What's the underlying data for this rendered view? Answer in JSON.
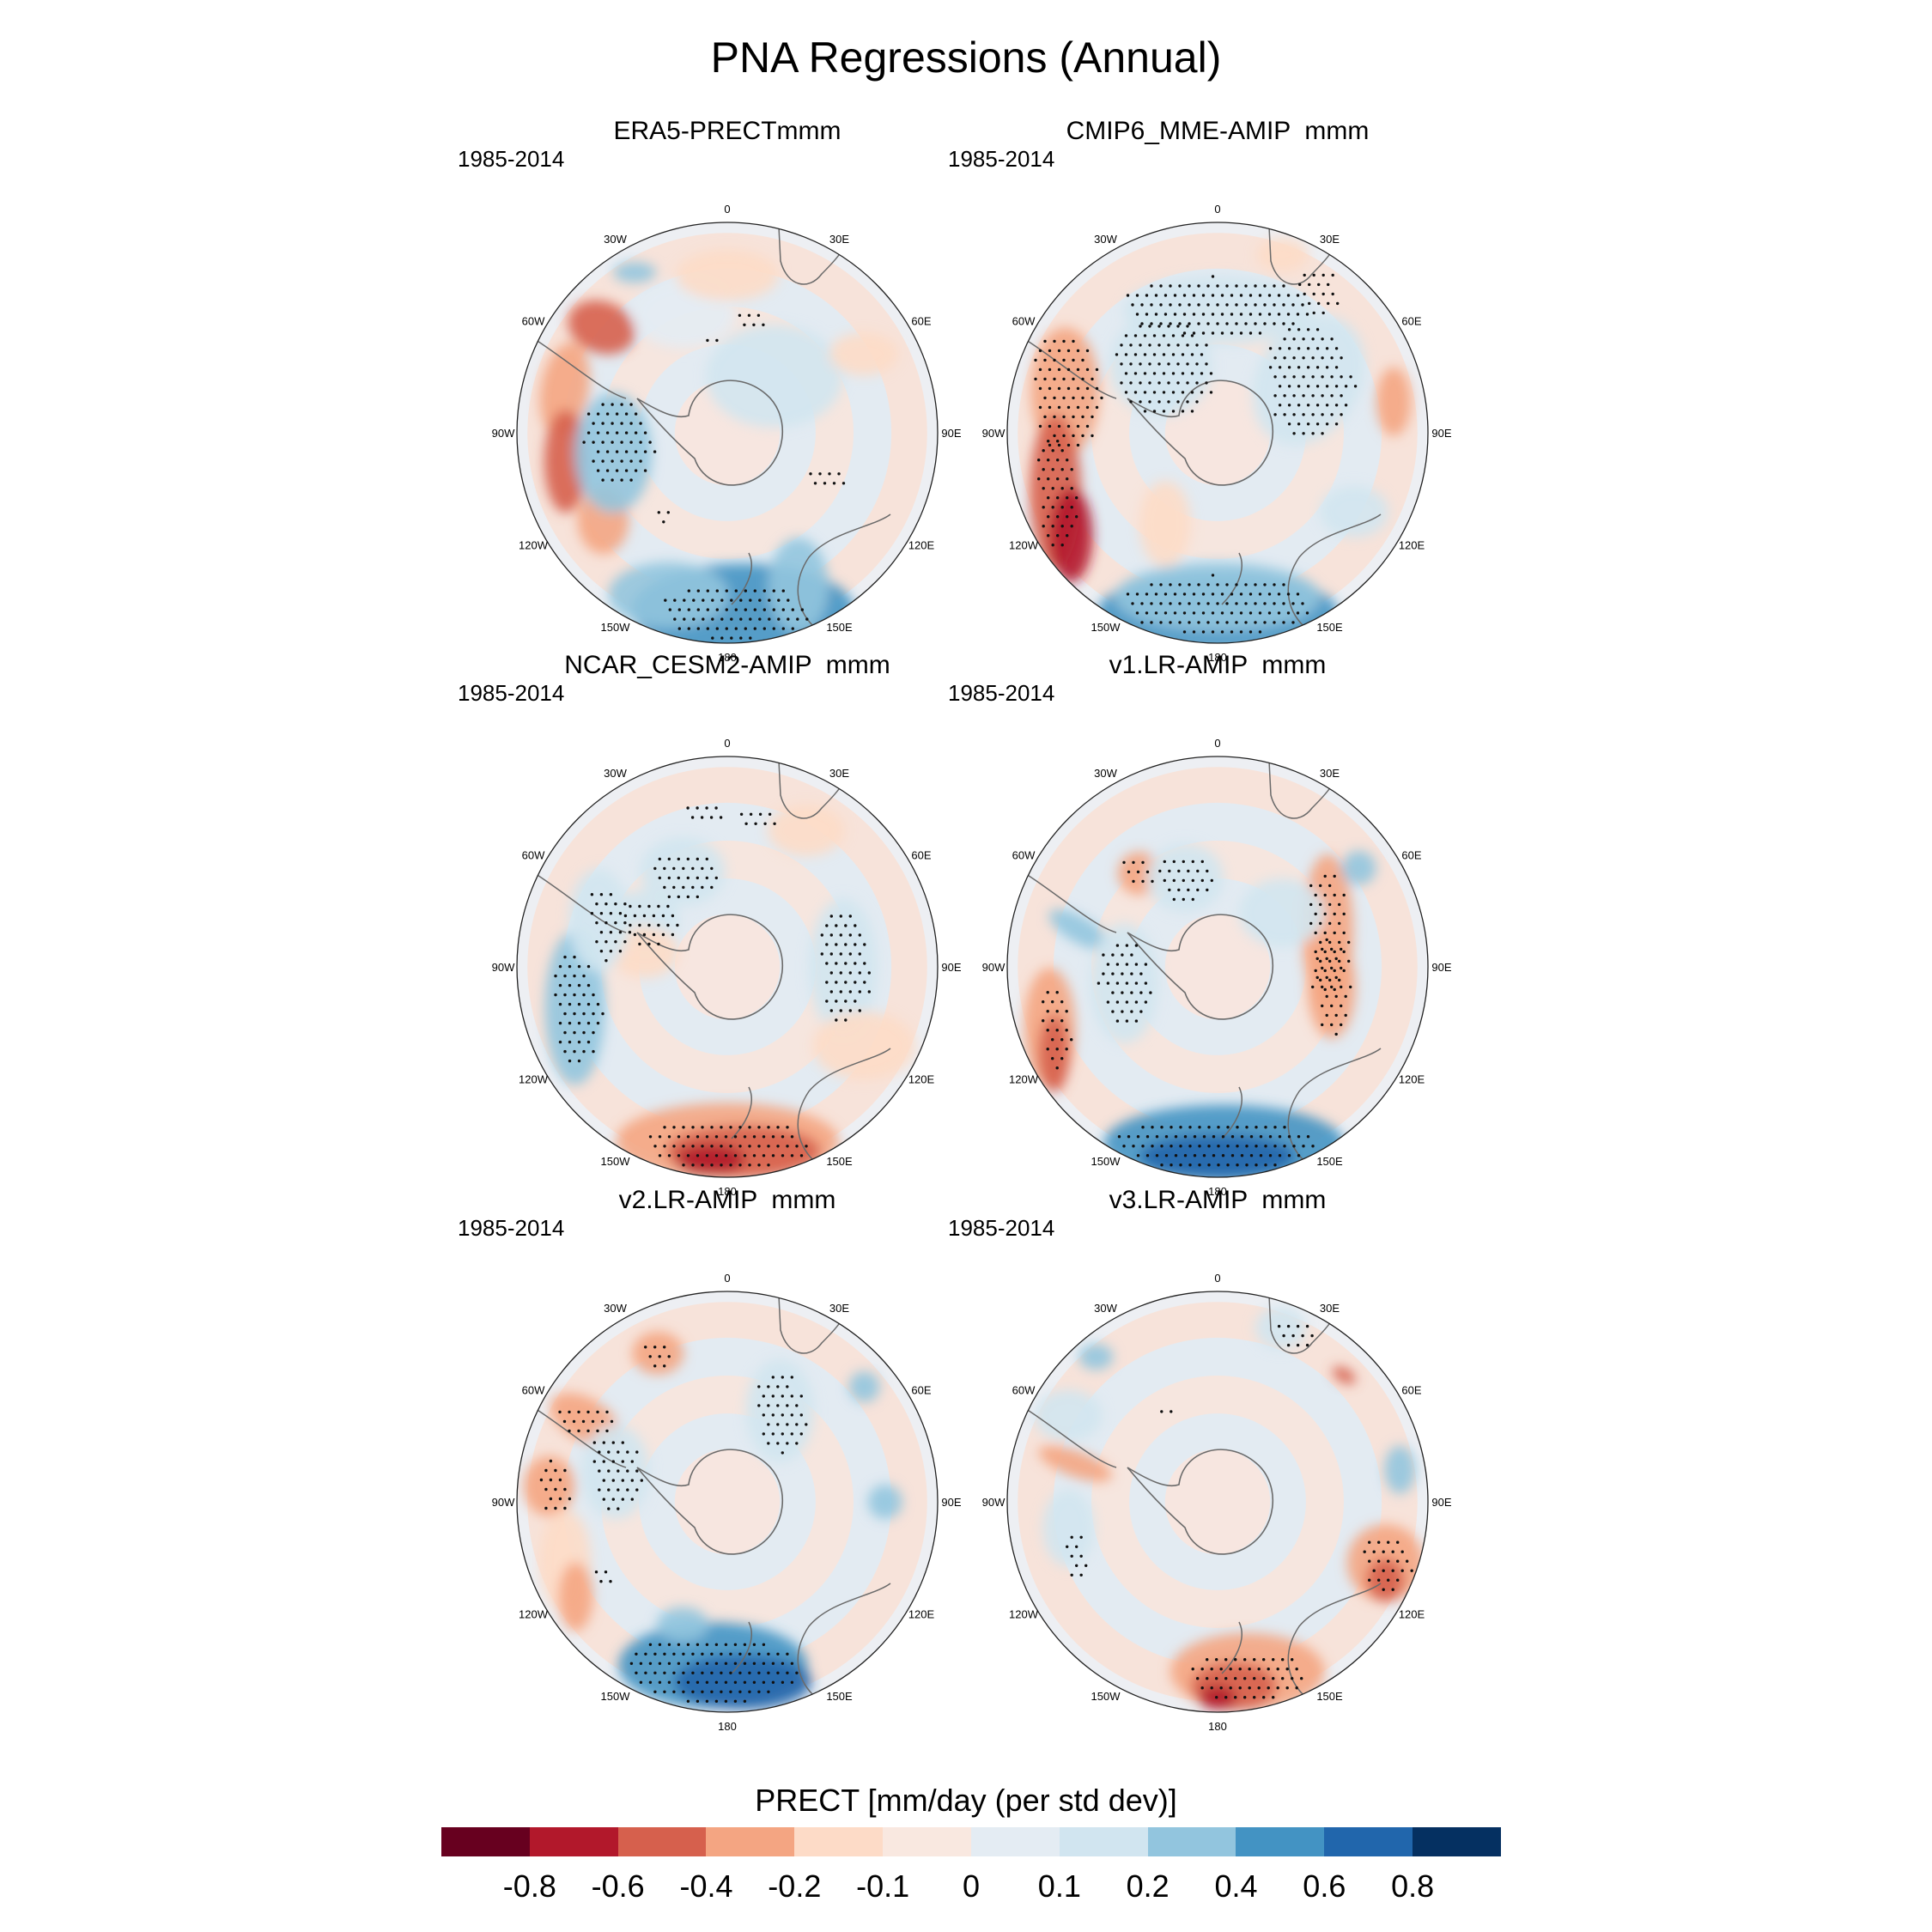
{
  "title": "PNA Regressions (Annual)",
  "panels": [
    {
      "title": "ERA5-PRECTmmm",
      "period": "1985-2014",
      "pattern": "era5"
    },
    {
      "title": "CMIP6_MME-AMIP  mmm",
      "period": "1985-2014",
      "pattern": "cmip6"
    },
    {
      "title": "NCAR_CESM2-AMIP  mmm",
      "period": "1985-2014",
      "pattern": "cesm2"
    },
    {
      "title": "v1.LR-AMIP  mmm",
      "period": "1985-2014",
      "pattern": "v1"
    },
    {
      "title": "v2.LR-AMIP  mmm",
      "period": "1985-2014",
      "pattern": "v2"
    },
    {
      "title": "v3.LR-AMIP  mmm",
      "period": "1985-2014",
      "pattern": "v3"
    }
  ],
  "longitude_labels": [
    "0",
    "30E",
    "60E",
    "90E",
    "120E",
    "150E",
    "180",
    "150W",
    "120W",
    "90W",
    "60W",
    "30W"
  ],
  "colorbar": {
    "title": "PRECT [mm/day (per std dev)]",
    "labels": [
      "-0.8",
      "-0.6",
      "-0.4",
      "-0.2",
      "-0.1",
      "0",
      "0.1",
      "0.2",
      "0.4",
      "0.6",
      "0.8"
    ],
    "colors": [
      "#67001f",
      "#b2182b",
      "#d6604d",
      "#f4a582",
      "#fddbc7",
      "#f9e8e0",
      "#e4ecf3",
      "#d1e5f0",
      "#92c5de",
      "#4393c3",
      "#2166ac",
      "#053061"
    ]
  }
}
